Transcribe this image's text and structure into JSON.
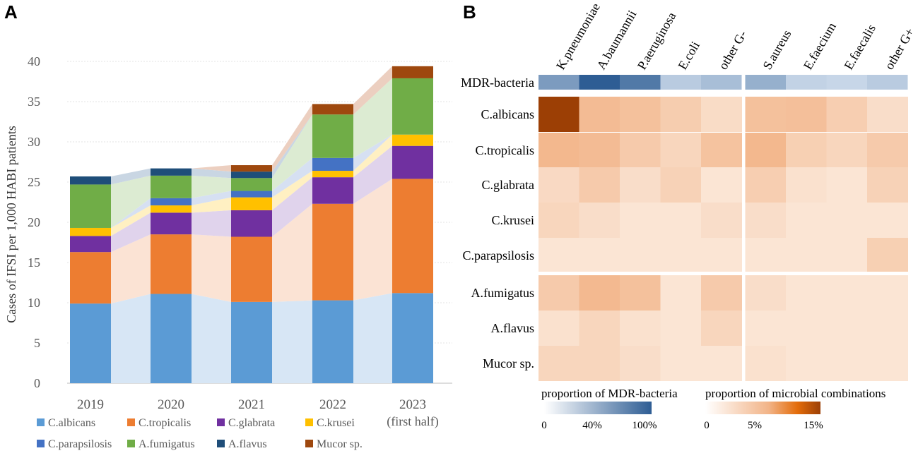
{
  "panel_labels": {
    "a": "A",
    "b": "B"
  },
  "chart_data": [
    {
      "type": "bar",
      "stacked": true,
      "title": "",
      "xlabel": "",
      "ylabel": "Cases of IFSI per 1,000 HABI patients",
      "ylim": [
        0,
        40
      ],
      "yticks": [
        0,
        5,
        10,
        15,
        20,
        25,
        30,
        35,
        40
      ],
      "grid": true,
      "categories": [
        "2019",
        "2020",
        "2021",
        "2022",
        "2023"
      ],
      "category_sublabels": [
        "",
        "",
        "",
        "",
        "(first half)"
      ],
      "series": [
        {
          "name": "C.albicans",
          "color": "#5B9BD5",
          "band": "#D7E6F5",
          "values": [
            9.9,
            11.1,
            10.1,
            10.3,
            11.2
          ]
        },
        {
          "name": "C.tropicalis",
          "color": "#ED7D31",
          "band": "#FBE3D4",
          "values": [
            6.4,
            7.4,
            8.1,
            12.0,
            14.2
          ]
        },
        {
          "name": "C.glabrata",
          "color": "#7030A0",
          "band": "#E0D3EC",
          "values": [
            2.0,
            2.7,
            3.3,
            3.3,
            4.1
          ]
        },
        {
          "name": "C.krusei",
          "color": "#FFC000",
          "band": "#FFF0C2",
          "values": [
            1.0,
            0.9,
            1.6,
            0.8,
            1.4
          ]
        },
        {
          "name": "C.parapsilosis",
          "color": "#4472C4",
          "band": "#D6E0F2",
          "values": [
            0.0,
            0.9,
            0.8,
            1.6,
            0.0
          ]
        },
        {
          "name": "A.fumigatus",
          "color": "#70AD47",
          "band": "#DCEBD2",
          "values": [
            5.4,
            2.8,
            1.6,
            5.4,
            7.0
          ]
        },
        {
          "name": "A.flavus",
          "color": "#1F4E79",
          "band": "#C9D6E3",
          "values": [
            1.0,
            0.9,
            0.8,
            0.0,
            0.0
          ]
        },
        {
          "name": "Mucor sp.",
          "color": "#9E480E",
          "band": "#ECCFC0",
          "values": [
            0.0,
            0.0,
            0.8,
            1.3,
            1.5
          ]
        }
      ]
    },
    {
      "type": "heatmap",
      "x": [
        "K.pneumoniae",
        "A.baumannii",
        "P.aeruginosa",
        "E.coli",
        "other G-",
        "S.aureus",
        "E.faecium",
        "E.faecalis",
        "other G+"
      ],
      "mdr_row_label": "MDR-bacteria",
      "mdr_proportion": [
        0.55,
        1.0,
        0.8,
        0.2,
        0.3,
        0.4,
        0.15,
        0.12,
        0.2
      ],
      "y": [
        "C.albicans",
        "C.tropicalis",
        "C.glabrata",
        "C.krusei",
        "C.parapsilosis",
        "A.fumigatus",
        "A.flavus",
        "Mucor sp."
      ],
      "values": [
        [
          15.0,
          6.5,
          5.8,
          4.2,
          2.2,
          5.8,
          6.0,
          4.0,
          2.0
        ],
        [
          7.0,
          6.5,
          4.5,
          3.0,
          5.5,
          7.0,
          3.8,
          3.0,
          4.5
        ],
        [
          2.5,
          4.5,
          2.0,
          3.5,
          1.0,
          4.0,
          1.5,
          1.0,
          3.5
        ],
        [
          3.0,
          2.0,
          1.0,
          1.0,
          2.0,
          2.0,
          1.0,
          1.0,
          1.0
        ],
        [
          1.0,
          1.0,
          1.0,
          1.0,
          1.0,
          1.0,
          1.0,
          1.0,
          3.8
        ],
        [
          4.5,
          6.8,
          5.8,
          1.0,
          4.5,
          2.0,
          1.0,
          1.0,
          1.0
        ],
        [
          1.5,
          3.0,
          1.5,
          1.0,
          3.0,
          1.0,
          1.0,
          1.0,
          1.0
        ],
        [
          3.0,
          3.0,
          2.0,
          1.0,
          1.0,
          1.5,
          1.0,
          1.0,
          1.0
        ]
      ],
      "value_unit": "%",
      "colorbars": {
        "mdr": {
          "label": "proportion of  MDR-bacteria",
          "ticks": [
            "0",
            "40%",
            "100%"
          ],
          "from": "#FFFFFF",
          "to": "#2E5D94"
        },
        "combo": {
          "label": "proportion of  microbial combinations",
          "ticks": [
            "0",
            "5%",
            "15%"
          ],
          "from": "#FFFFFF",
          "mid": "#F2B488",
          "to": "#9C3F05"
        }
      }
    }
  ]
}
